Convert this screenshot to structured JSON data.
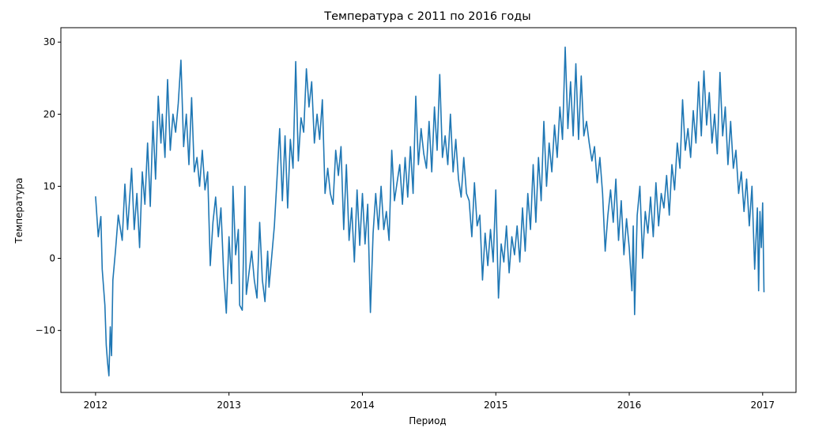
{
  "chart_data": {
    "type": "line",
    "title": "Температура с 2011 по 2016 годы",
    "xlabel": "Период",
    "ylabel": "Температура",
    "xlim": [
      2011.74,
      2017.25
    ],
    "ylim": [
      -18.6,
      32.0
    ],
    "grid": false,
    "x_ticks": [
      {
        "value": 2012,
        "label": "2012"
      },
      {
        "value": 2013,
        "label": "2013"
      },
      {
        "value": 2014,
        "label": "2014"
      },
      {
        "value": 2015,
        "label": "2015"
      },
      {
        "value": 2016,
        "label": "2016"
      },
      {
        "value": 2017,
        "label": "2017"
      }
    ],
    "y_ticks": [
      {
        "value": 30,
        "label": "30"
      },
      {
        "value": 20,
        "label": "20"
      },
      {
        "value": 10,
        "label": "10"
      },
      {
        "value": 0,
        "label": "0"
      },
      {
        "value": -10,
        "label": "−10"
      }
    ],
    "series": [
      {
        "color": "#1f77b4",
        "points": [
          [
            2012.0,
            8.6
          ],
          [
            2012.02,
            3.0
          ],
          [
            2012.04,
            5.8
          ],
          [
            2012.05,
            -1.5
          ],
          [
            2012.07,
            -6.5
          ],
          [
            2012.08,
            -12.0
          ],
          [
            2012.09,
            -14.5
          ],
          [
            2012.1,
            -16.3
          ],
          [
            2012.11,
            -9.5
          ],
          [
            2012.12,
            -13.5
          ],
          [
            2012.13,
            -3.0
          ],
          [
            2012.15,
            1.2
          ],
          [
            2012.17,
            6.0
          ],
          [
            2012.2,
            2.5
          ],
          [
            2012.22,
            10.3
          ],
          [
            2012.24,
            4.0
          ],
          [
            2012.27,
            12.5
          ],
          [
            2012.29,
            4.0
          ],
          [
            2012.31,
            9.0
          ],
          [
            2012.33,
            1.5
          ],
          [
            2012.35,
            12.0
          ],
          [
            2012.37,
            7.5
          ],
          [
            2012.39,
            16.0
          ],
          [
            2012.41,
            7.2
          ],
          [
            2012.43,
            19.0
          ],
          [
            2012.45,
            11.0
          ],
          [
            2012.47,
            22.5
          ],
          [
            2012.49,
            16.0
          ],
          [
            2012.5,
            20.0
          ],
          [
            2012.52,
            14.0
          ],
          [
            2012.54,
            24.8
          ],
          [
            2012.56,
            15.0
          ],
          [
            2012.58,
            20.0
          ],
          [
            2012.6,
            17.5
          ],
          [
            2012.62,
            21.5
          ],
          [
            2012.64,
            27.5
          ],
          [
            2012.66,
            15.5
          ],
          [
            2012.68,
            20.0
          ],
          [
            2012.7,
            13.0
          ],
          [
            2012.72,
            22.3
          ],
          [
            2012.74,
            12.0
          ],
          [
            2012.76,
            14.0
          ],
          [
            2012.78,
            10.0
          ],
          [
            2012.8,
            15.0
          ],
          [
            2012.82,
            9.5
          ],
          [
            2012.84,
            12.0
          ],
          [
            2012.86,
            -1.0
          ],
          [
            2012.88,
            5.0
          ],
          [
            2012.9,
            8.5
          ],
          [
            2012.92,
            3.0
          ],
          [
            2012.94,
            7.0
          ],
          [
            2012.96,
            -2.0
          ],
          [
            2012.98,
            -7.6
          ],
          [
            2013.0,
            3.0
          ],
          [
            2013.02,
            -3.5
          ],
          [
            2013.03,
            10.0
          ],
          [
            2013.05,
            0.5
          ],
          [
            2013.07,
            4.0
          ],
          [
            2013.08,
            -6.5
          ],
          [
            2013.1,
            -7.2
          ],
          [
            2013.12,
            10.0
          ],
          [
            2013.13,
            -5.0
          ],
          [
            2013.15,
            -2.0
          ],
          [
            2013.17,
            1.0
          ],
          [
            2013.19,
            -3.0
          ],
          [
            2013.21,
            -5.5
          ],
          [
            2013.23,
            5.0
          ],
          [
            2013.25,
            -3.0
          ],
          [
            2013.27,
            -6.0
          ],
          [
            2013.29,
            1.0
          ],
          [
            2013.3,
            -4.0
          ],
          [
            2013.32,
            0.2
          ],
          [
            2013.34,
            4.5
          ],
          [
            2013.36,
            11.0
          ],
          [
            2013.38,
            18.0
          ],
          [
            2013.4,
            8.0
          ],
          [
            2013.42,
            17.0
          ],
          [
            2013.44,
            7.0
          ],
          [
            2013.46,
            16.5
          ],
          [
            2013.48,
            12.5
          ],
          [
            2013.5,
            27.3
          ],
          [
            2013.52,
            13.5
          ],
          [
            2013.54,
            19.5
          ],
          [
            2013.56,
            17.5
          ],
          [
            2013.58,
            26.3
          ],
          [
            2013.6,
            21.0
          ],
          [
            2013.62,
            24.5
          ],
          [
            2013.64,
            16.0
          ],
          [
            2013.66,
            20.0
          ],
          [
            2013.68,
            16.5
          ],
          [
            2013.7,
            22.0
          ],
          [
            2013.72,
            9.0
          ],
          [
            2013.74,
            12.5
          ],
          [
            2013.76,
            9.0
          ],
          [
            2013.78,
            7.5
          ],
          [
            2013.8,
            15.0
          ],
          [
            2013.82,
            11.5
          ],
          [
            2013.84,
            15.5
          ],
          [
            2013.86,
            4.0
          ],
          [
            2013.88,
            13.0
          ],
          [
            2013.9,
            2.5
          ],
          [
            2013.92,
            7.0
          ],
          [
            2013.94,
            -0.5
          ],
          [
            2013.96,
            9.5
          ],
          [
            2013.98,
            1.8
          ],
          [
            2014.0,
            9.0
          ],
          [
            2014.02,
            2.0
          ],
          [
            2014.04,
            7.5
          ],
          [
            2014.06,
            -7.5
          ],
          [
            2014.08,
            3.5
          ],
          [
            2014.1,
            9.0
          ],
          [
            2014.12,
            4.0
          ],
          [
            2014.14,
            10.0
          ],
          [
            2014.16,
            4.0
          ],
          [
            2014.18,
            6.5
          ],
          [
            2014.2,
            2.5
          ],
          [
            2014.22,
            15.0
          ],
          [
            2014.24,
            8.0
          ],
          [
            2014.26,
            10.5
          ],
          [
            2014.28,
            13.0
          ],
          [
            2014.3,
            7.5
          ],
          [
            2014.32,
            14.0
          ],
          [
            2014.34,
            8.5
          ],
          [
            2014.36,
            15.5
          ],
          [
            2014.38,
            9.0
          ],
          [
            2014.4,
            22.5
          ],
          [
            2014.42,
            13.0
          ],
          [
            2014.44,
            18.0
          ],
          [
            2014.46,
            14.5
          ],
          [
            2014.48,
            12.5
          ],
          [
            2014.5,
            19.0
          ],
          [
            2014.52,
            12.0
          ],
          [
            2014.54,
            21.0
          ],
          [
            2014.56,
            15.0
          ],
          [
            2014.58,
            25.5
          ],
          [
            2014.6,
            14.0
          ],
          [
            2014.62,
            17.0
          ],
          [
            2014.64,
            13.0
          ],
          [
            2014.66,
            20.0
          ],
          [
            2014.68,
            12.0
          ],
          [
            2014.7,
            16.5
          ],
          [
            2014.72,
            11.0
          ],
          [
            2014.74,
            8.5
          ],
          [
            2014.76,
            14.0
          ],
          [
            2014.78,
            9.0
          ],
          [
            2014.8,
            8.0
          ],
          [
            2014.82,
            3.0
          ],
          [
            2014.84,
            10.5
          ],
          [
            2014.86,
            4.5
          ],
          [
            2014.88,
            6.0
          ],
          [
            2014.9,
            -3.0
          ],
          [
            2014.92,
            3.5
          ],
          [
            2014.94,
            -1.0
          ],
          [
            2014.96,
            4.0
          ],
          [
            2014.98,
            -0.5
          ],
          [
            2015.0,
            9.5
          ],
          [
            2015.02,
            -5.5
          ],
          [
            2015.04,
            2.0
          ],
          [
            2015.06,
            -0.5
          ],
          [
            2015.08,
            4.5
          ],
          [
            2015.1,
            -2.0
          ],
          [
            2015.12,
            3.0
          ],
          [
            2015.14,
            0.5
          ],
          [
            2015.16,
            4.5
          ],
          [
            2015.18,
            -0.5
          ],
          [
            2015.2,
            7.0
          ],
          [
            2015.22,
            1.0
          ],
          [
            2015.24,
            9.0
          ],
          [
            2015.26,
            4.0
          ],
          [
            2015.28,
            13.0
          ],
          [
            2015.3,
            5.0
          ],
          [
            2015.32,
            14.0
          ],
          [
            2015.34,
            8.0
          ],
          [
            2015.36,
            19.0
          ],
          [
            2015.38,
            10.0
          ],
          [
            2015.4,
            16.0
          ],
          [
            2015.42,
            12.0
          ],
          [
            2015.44,
            18.5
          ],
          [
            2015.46,
            14.0
          ],
          [
            2015.48,
            21.0
          ],
          [
            2015.5,
            16.5
          ],
          [
            2015.52,
            29.3
          ],
          [
            2015.54,
            18.0
          ],
          [
            2015.56,
            24.5
          ],
          [
            2015.58,
            17.0
          ],
          [
            2015.6,
            27.0
          ],
          [
            2015.62,
            16.5
          ],
          [
            2015.64,
            25.3
          ],
          [
            2015.66,
            17.0
          ],
          [
            2015.68,
            19.0
          ],
          [
            2015.7,
            16.0
          ],
          [
            2015.72,
            13.5
          ],
          [
            2015.74,
            15.5
          ],
          [
            2015.76,
            10.5
          ],
          [
            2015.78,
            14.0
          ],
          [
            2015.8,
            9.0
          ],
          [
            2015.82,
            1.0
          ],
          [
            2015.84,
            6.0
          ],
          [
            2015.86,
            9.5
          ],
          [
            2015.88,
            5.0
          ],
          [
            2015.9,
            11.0
          ],
          [
            2015.92,
            2.5
          ],
          [
            2015.94,
            8.0
          ],
          [
            2015.96,
            0.5
          ],
          [
            2015.98,
            5.5
          ],
          [
            2016.0,
            1.5
          ],
          [
            2016.02,
            -4.5
          ],
          [
            2016.03,
            4.5
          ],
          [
            2016.04,
            -7.8
          ],
          [
            2016.06,
            6.0
          ],
          [
            2016.08,
            10.0
          ],
          [
            2016.1,
            0.0
          ],
          [
            2016.12,
            6.5
          ],
          [
            2016.14,
            3.5
          ],
          [
            2016.16,
            8.5
          ],
          [
            2016.18,
            3.0
          ],
          [
            2016.2,
            10.5
          ],
          [
            2016.22,
            4.5
          ],
          [
            2016.24,
            9.0
          ],
          [
            2016.26,
            7.0
          ],
          [
            2016.28,
            11.5
          ],
          [
            2016.3,
            6.0
          ],
          [
            2016.32,
            13.0
          ],
          [
            2016.34,
            9.5
          ],
          [
            2016.36,
            16.0
          ],
          [
            2016.38,
            12.5
          ],
          [
            2016.4,
            22.0
          ],
          [
            2016.42,
            15.0
          ],
          [
            2016.44,
            18.0
          ],
          [
            2016.46,
            14.0
          ],
          [
            2016.48,
            20.5
          ],
          [
            2016.5,
            16.0
          ],
          [
            2016.52,
            24.5
          ],
          [
            2016.54,
            17.0
          ],
          [
            2016.56,
            26.0
          ],
          [
            2016.58,
            18.5
          ],
          [
            2016.6,
            23.0
          ],
          [
            2016.62,
            16.0
          ],
          [
            2016.64,
            20.0
          ],
          [
            2016.66,
            14.5
          ],
          [
            2016.68,
            25.8
          ],
          [
            2016.7,
            17.0
          ],
          [
            2016.72,
            21.0
          ],
          [
            2016.74,
            13.0
          ],
          [
            2016.76,
            19.0
          ],
          [
            2016.78,
            12.5
          ],
          [
            2016.8,
            15.0
          ],
          [
            2016.82,
            9.0
          ],
          [
            2016.84,
            12.0
          ],
          [
            2016.86,
            6.5
          ],
          [
            2016.88,
            11.0
          ],
          [
            2016.9,
            4.5
          ],
          [
            2016.92,
            10.0
          ],
          [
            2016.94,
            -1.5
          ],
          [
            2016.96,
            7.0
          ],
          [
            2016.97,
            -4.5
          ],
          [
            2016.98,
            6.5
          ],
          [
            2016.99,
            1.5
          ],
          [
            2017.0,
            7.7
          ],
          [
            2017.01,
            -4.7
          ]
        ]
      }
    ]
  }
}
